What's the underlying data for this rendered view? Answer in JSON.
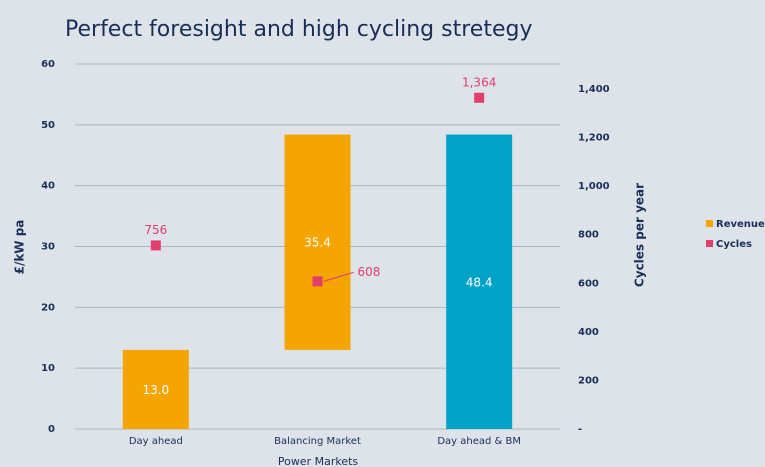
{
  "chart_data": {
    "type": "waterfall",
    "title": "Perfect foresight and high cycling stretegy",
    "xlabel": "Power Markets",
    "ylabel": "£/kW pa",
    "y2label": "Cycles per year",
    "categories": [
      "Day ahead",
      "Balancing Market",
      "Day ahead & BM"
    ],
    "series": [
      {
        "name": "Revenue",
        "type": "waterfall",
        "color": "#f5a500",
        "total_color": "#00a2c7",
        "measure": [
          "relative",
          "relative",
          "total"
        ],
        "values": [
          13.0,
          35.4,
          48.4
        ],
        "value_labels": [
          "13.0",
          "35.4",
          "48.4"
        ]
      },
      {
        "name": "Cycles",
        "type": "scatter",
        "axis": "y2",
        "color": "#e23d6b",
        "values": [
          756,
          608,
          1364
        ],
        "value_labels": [
          "756",
          "608",
          "1,364"
        ]
      }
    ],
    "ylim": [
      0,
      60
    ],
    "yticks": [
      0,
      10,
      20,
      30,
      40,
      50,
      60
    ],
    "y2lim": [
      0,
      1503
    ],
    "y2ticks": [
      {
        "value": 0,
        "label": "-"
      },
      200,
      400,
      600,
      800,
      {
        "value": 1000,
        "label": "1,000"
      },
      {
        "value": 1200,
        "label": "1,200"
      },
      {
        "value": 1400,
        "label": "1,400"
      }
    ],
    "grid": true,
    "legend": "right"
  }
}
